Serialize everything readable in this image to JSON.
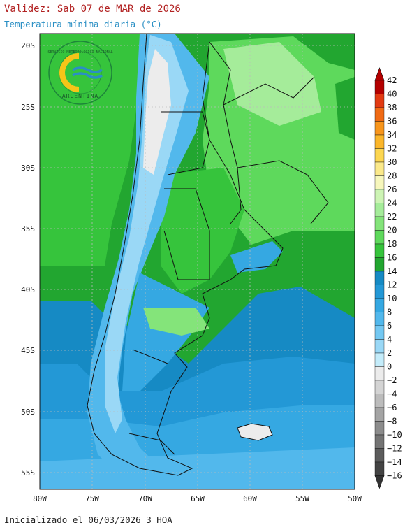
{
  "header": {
    "title": "Validez: Sab 07 de MAR de 2026",
    "subtitle": "Temperatura mínima diaria (°C)"
  },
  "footer": {
    "init_text": "Inicializado el 06/03/2026 3 HOA"
  },
  "logo": {
    "top_text": "SERVICIO METEOROLOGICO NACIONAL",
    "bottom_text": "ARGENTINA"
  },
  "map": {
    "lat_labels": [
      "20S",
      "25S",
      "30S",
      "35S",
      "40S",
      "45S",
      "50S",
      "55S"
    ],
    "lon_labels": [
      "80W",
      "75W",
      "70W",
      "65W",
      "60W",
      "55W",
      "50W"
    ]
  },
  "legend": {
    "levels": [
      "42",
      "40",
      "38",
      "36",
      "34",
      "32",
      "30",
      "28",
      "26",
      "24",
      "22",
      "20",
      "18",
      "16",
      "14",
      "12",
      "10",
      "8",
      "6",
      "4",
      "2",
      "0",
      "−2",
      "−4",
      "−6",
      "−8",
      "−10",
      "−12",
      "−14",
      "−16"
    ],
    "colors": [
      "#b40000",
      "#e23a12",
      "#f06a14",
      "#f8961c",
      "#fbb62a",
      "#fcd650",
      "#fbe98a",
      "#f7f7bc",
      "#cdf4b4",
      "#a5ec9a",
      "#84e47a",
      "#5ed95c",
      "#36c43c",
      "#22a630",
      "#168ac4",
      "#2398d6",
      "#35a8e2",
      "#52b8ec",
      "#74c8f2",
      "#9ad8f6",
      "#c4ecfa",
      "#ececec",
      "#d4d4d4",
      "#bcbcbc",
      "#a4a4a4",
      "#8c8c8c",
      "#747474",
      "#5c5c5c",
      "#444444"
    ],
    "arrow_top_color": "#b40000",
    "arrow_bottom_color": "#333333"
  }
}
